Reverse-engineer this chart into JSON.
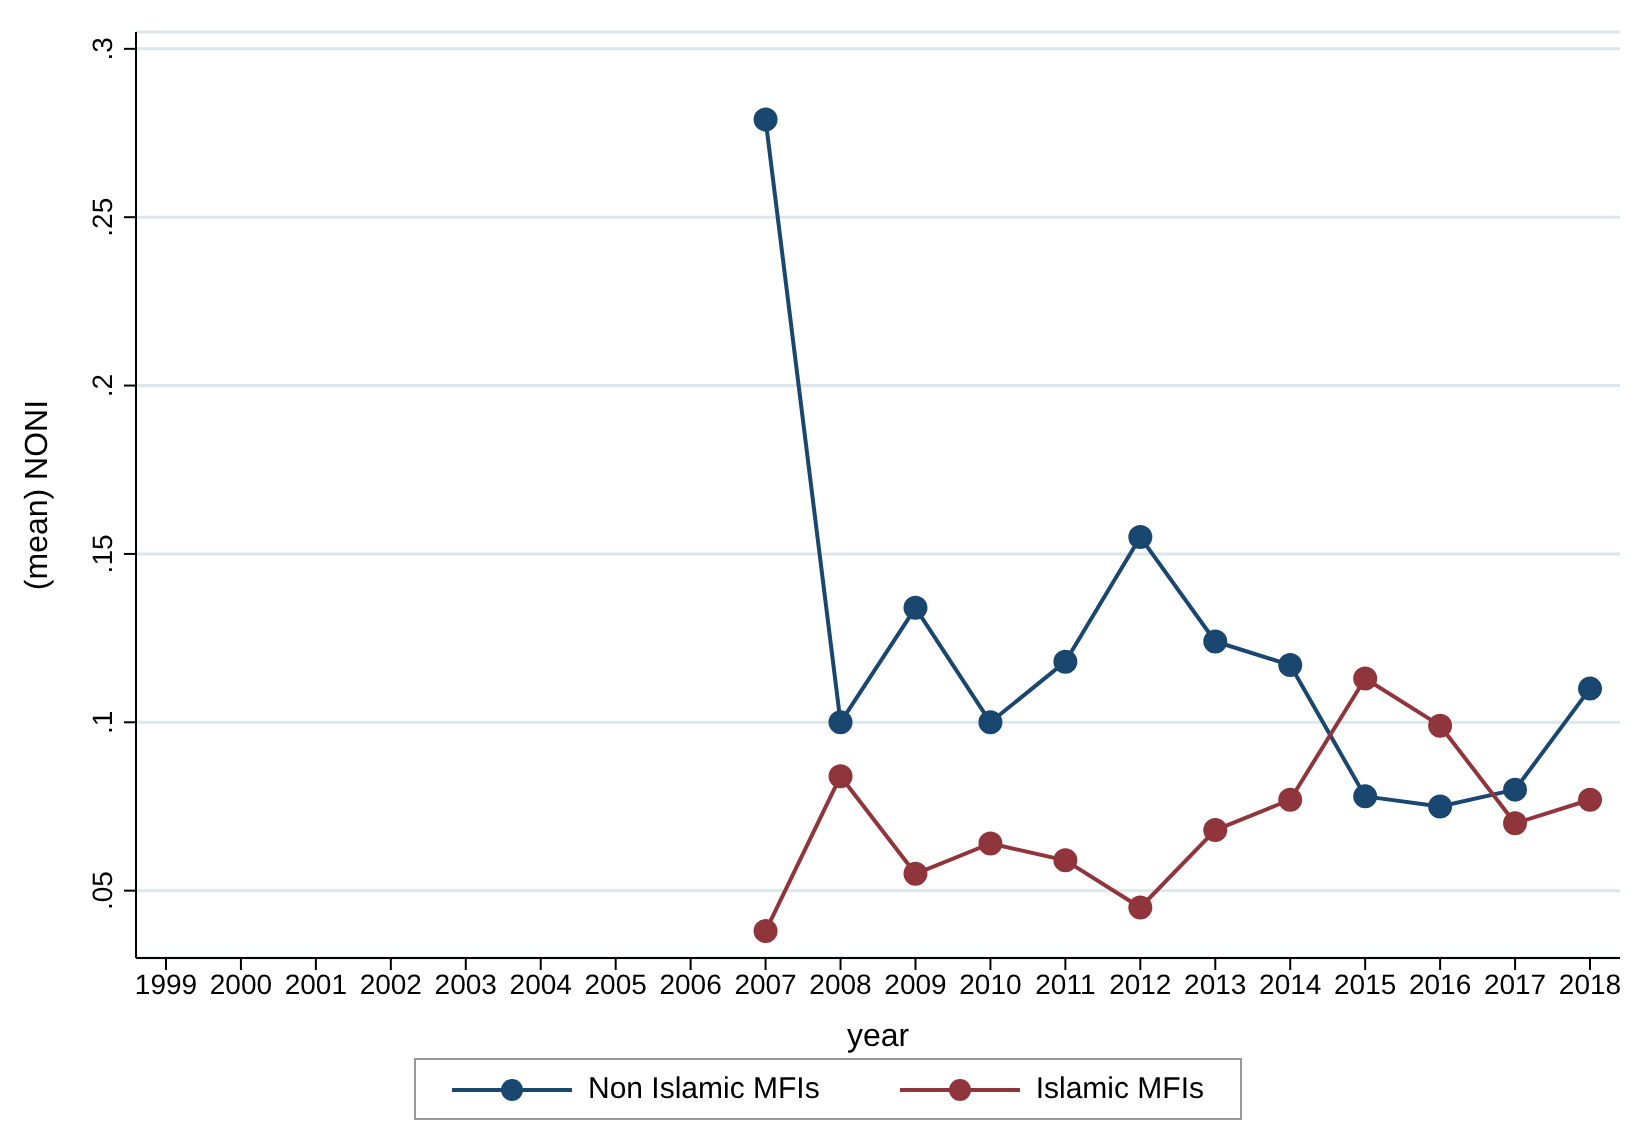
{
  "chart_data": {
    "type": "line",
    "xlabel": "year",
    "ylabel": "(mean) NONI",
    "x": [
      2007,
      2008,
      2009,
      2010,
      2011,
      2012,
      2013,
      2014,
      2015,
      2016,
      2017,
      2018
    ],
    "series": [
      {
        "name": "Non Islamic MFIs",
        "color": "#1a476f",
        "values": [
          0.279,
          0.1,
          0.134,
          0.1,
          0.118,
          0.155,
          0.124,
          0.117,
          0.078,
          0.075,
          0.08,
          0.11
        ]
      },
      {
        "name": "Islamic MFIs",
        "color": "#90353b",
        "values": [
          0.038,
          0.084,
          0.055,
          0.064,
          0.059,
          0.045,
          0.068,
          0.077,
          0.113,
          0.099,
          0.07,
          0.077
        ]
      }
    ],
    "xlim": [
      1998.6,
      2018.4
    ],
    "xticks": [
      1999,
      2000,
      2001,
      2002,
      2003,
      2004,
      2005,
      2006,
      2007,
      2008,
      2009,
      2010,
      2011,
      2012,
      2013,
      2014,
      2015,
      2016,
      2017,
      2018
    ],
    "ylim": [
      0.03,
      0.305
    ],
    "yticks": [
      {
        "value": 0.05,
        "label": ".05"
      },
      {
        "value": 0.1,
        "label": ".1"
      },
      {
        "value": 0.15,
        "label": ".15"
      },
      {
        "value": 0.2,
        "label": ".2"
      },
      {
        "value": 0.25,
        "label": ".25"
      },
      {
        "value": 0.3,
        "label": ".3"
      }
    ],
    "grid": "y",
    "legend": "bottom",
    "marker": "circle",
    "line_style": "solid"
  }
}
